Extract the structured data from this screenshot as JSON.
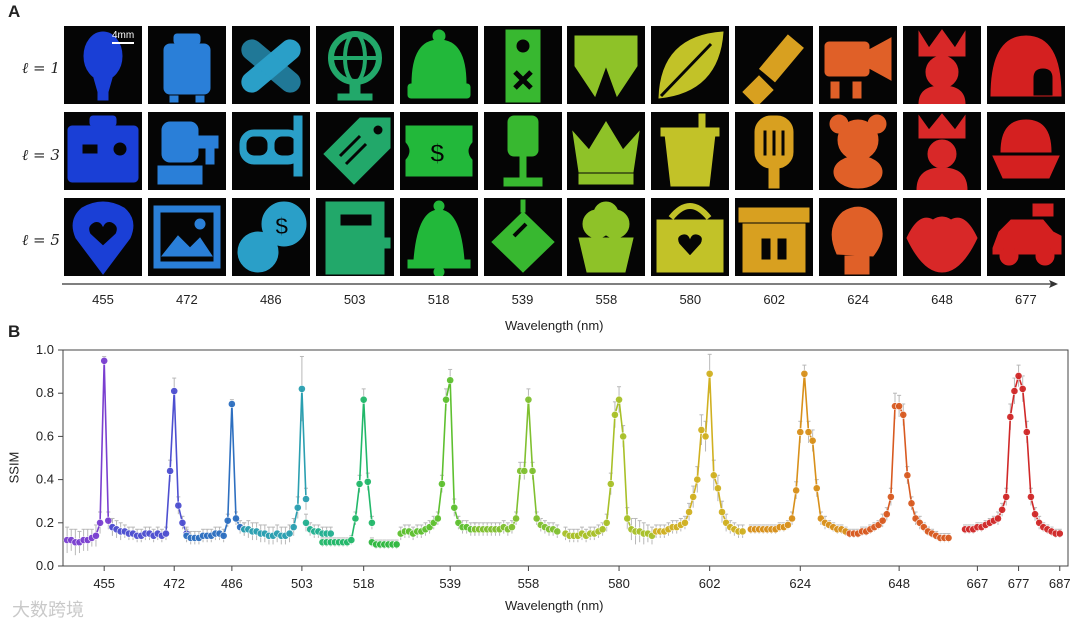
{
  "panels": {
    "a_label": "A",
    "b_label": "B"
  },
  "panel_a": {
    "row_labels": [
      "ℓ = 1",
      "ℓ = 3",
      "ℓ = 5"
    ],
    "scale_bar": "4mm",
    "wavelengths": [
      "455",
      "472",
      "486",
      "503",
      "518",
      "539",
      "558",
      "580",
      "602",
      "624",
      "648",
      "677"
    ],
    "xlabel": "Wavelength (nm)",
    "tile_colors": [
      "#1a3fd6",
      "#2a7fd8",
      "#2a9fc8",
      "#22a86a",
      "#22b83a",
      "#38b830",
      "#8ec228",
      "#c2c228",
      "#d8a020",
      "#e06028",
      "#d82828",
      "#d42020"
    ],
    "icons": [
      [
        "balloon-icon",
        "suitcase-icon",
        "bandage-icon",
        "globe-icon",
        "beanie-icon",
        "door-hanger-icon",
        "swim-shorts-icon",
        "leaf-icon",
        "flashlight-icon",
        "projector-icon",
        "princess-icon",
        "igloo-icon"
      ],
      [
        "toolbox-icon",
        "faucet-icon",
        "snorkel-mask-icon",
        "price-tag-icon",
        "ticket-icon",
        "lamp-icon",
        "crown-icon",
        "drink-cup-icon",
        "popsicle-icon",
        "teddy-bear-icon",
        "queen-icon",
        "sailboat-icon"
      ],
      [
        "heart-pin-icon",
        "picture-icon",
        "coins-icon",
        "notebook-icon",
        "bell-icon",
        "disco-ball-icon",
        "cupcake-icon",
        "basket-heart-icon",
        "gift-box-icon",
        "boxing-glove-icon",
        "lips-icon",
        "car-icon"
      ]
    ]
  },
  "chart_data": {
    "type": "line",
    "title": "",
    "xlabel": "Wavelength (nm)",
    "ylabel": "SSIM",
    "ylim": [
      0.0,
      1.0
    ],
    "yticks": [
      0.0,
      0.2,
      0.4,
      0.6,
      0.8,
      1.0
    ],
    "ytick_labels": [
      "0.0",
      "0.2",
      "0.4",
      "0.6",
      "0.8",
      "1.0"
    ],
    "xticks": [
      455,
      472,
      486,
      503,
      518,
      539,
      558,
      580,
      602,
      624,
      648,
      667,
      677,
      687
    ],
    "xtick_labels": [
      "455",
      "472",
      "486",
      "503",
      "518",
      "539",
      "558",
      "580",
      "602",
      "624",
      "648",
      "667",
      "677",
      "687"
    ],
    "xlim": [
      445,
      689
    ],
    "grid": false,
    "series": [
      {
        "color": "#7a3fd0",
        "x": [
          446,
          447,
          448,
          449,
          450,
          451,
          452,
          453,
          454,
          455,
          456,
          457
        ],
        "y": [
          0.12,
          0.12,
          0.11,
          0.11,
          0.12,
          0.12,
          0.13,
          0.14,
          0.2,
          0.95,
          0.21,
          0.18
        ],
        "err": [
          0.06,
          0.05,
          0.06,
          0.05,
          0.05,
          0.05,
          0.04,
          0.05,
          0.05,
          0.02,
          0.04,
          0.04
        ]
      },
      {
        "color": "#4d4fd0",
        "x": [
          457,
          458,
          459,
          460,
          461,
          462,
          463,
          464,
          465,
          466,
          467,
          468,
          469,
          470,
          471,
          472,
          473,
          474,
          475
        ],
        "y": [
          0.18,
          0.17,
          0.16,
          0.16,
          0.15,
          0.15,
          0.14,
          0.14,
          0.15,
          0.15,
          0.14,
          0.15,
          0.14,
          0.15,
          0.44,
          0.81,
          0.28,
          0.2,
          0.15
        ],
        "err": [
          0.04,
          0.04,
          0.04,
          0.03,
          0.03,
          0.03,
          0.03,
          0.03,
          0.03,
          0.03,
          0.03,
          0.03,
          0.03,
          0.03,
          0.05,
          0.06,
          0.04,
          0.03,
          0.03
        ]
      },
      {
        "color": "#2d6fc0",
        "x": [
          475,
          476,
          477,
          478,
          479,
          480,
          481,
          482,
          483,
          484,
          485,
          486,
          487,
          488,
          489
        ],
        "y": [
          0.14,
          0.13,
          0.13,
          0.13,
          0.14,
          0.14,
          0.14,
          0.15,
          0.15,
          0.14,
          0.21,
          0.75,
          0.22,
          0.18,
          0.17
        ],
        "err": [
          0.03,
          0.03,
          0.03,
          0.03,
          0.03,
          0.03,
          0.03,
          0.03,
          0.03,
          0.03,
          0.03,
          0.02,
          0.03,
          0.03,
          0.03
        ]
      },
      {
        "color": "#2a9fb0",
        "x": [
          489,
          490,
          491,
          492,
          493,
          494,
          495,
          496,
          497,
          498,
          499,
          500,
          501,
          502,
          503,
          504
        ],
        "y": [
          0.17,
          0.17,
          0.16,
          0.16,
          0.15,
          0.15,
          0.14,
          0.14,
          0.15,
          0.14,
          0.14,
          0.15,
          0.18,
          0.27,
          0.82,
          0.31
        ],
        "err": [
          0.03,
          0.04,
          0.04,
          0.04,
          0.04,
          0.04,
          0.04,
          0.04,
          0.04,
          0.04,
          0.04,
          0.04,
          0.04,
          0.05,
          0.15,
          0.05
        ]
      },
      {
        "color": "#22b090",
        "x": [
          504,
          505,
          506,
          507,
          508,
          509,
          510
        ],
        "y": [
          0.2,
          0.17,
          0.16,
          0.16,
          0.15,
          0.15,
          0.15
        ],
        "err": [
          0.04,
          0.03,
          0.03,
          0.03,
          0.03,
          0.03,
          0.03
        ]
      },
      {
        "color": "#22b86a",
        "x": [
          508,
          509,
          510,
          511,
          512,
          513,
          514,
          515,
          516,
          517,
          518,
          519,
          520
        ],
        "y": [
          0.11,
          0.11,
          0.11,
          0.11,
          0.11,
          0.11,
          0.11,
          0.12,
          0.22,
          0.38,
          0.77,
          0.39,
          0.2
        ],
        "err": [
          0.02,
          0.02,
          0.02,
          0.02,
          0.02,
          0.02,
          0.02,
          0.02,
          0.03,
          0.04,
          0.05,
          0.04,
          0.03
        ]
      },
      {
        "color": "#30b840",
        "x": [
          520,
          521,
          522,
          523,
          524,
          525,
          526
        ],
        "y": [
          0.11,
          0.1,
          0.1,
          0.1,
          0.1,
          0.1,
          0.1
        ],
        "err": [
          0.02,
          0.02,
          0.02,
          0.02,
          0.02,
          0.02,
          0.02
        ]
      },
      {
        "color": "#5ec030",
        "x": [
          527,
          528,
          529,
          530,
          531,
          532,
          533,
          534,
          535,
          536,
          537,
          538,
          539,
          540,
          541,
          542,
          543,
          544,
          545
        ],
        "y": [
          0.15,
          0.16,
          0.16,
          0.15,
          0.16,
          0.16,
          0.17,
          0.18,
          0.2,
          0.22,
          0.38,
          0.77,
          0.86,
          0.27,
          0.2,
          0.18,
          0.18,
          0.17,
          0.17
        ],
        "err": [
          0.03,
          0.03,
          0.03,
          0.03,
          0.03,
          0.03,
          0.03,
          0.03,
          0.03,
          0.03,
          0.04,
          0.05,
          0.05,
          0.04,
          0.03,
          0.03,
          0.03,
          0.03,
          0.03
        ]
      },
      {
        "color": "#80c030",
        "x": [
          545,
          546,
          547,
          548,
          549,
          550,
          551,
          552,
          553,
          554,
          555,
          556,
          557,
          558,
          559,
          560,
          561,
          562,
          563,
          564,
          565
        ],
        "y": [
          0.17,
          0.17,
          0.17,
          0.17,
          0.17,
          0.17,
          0.17,
          0.18,
          0.17,
          0.18,
          0.22,
          0.44,
          0.44,
          0.77,
          0.44,
          0.22,
          0.19,
          0.18,
          0.17,
          0.17,
          0.16
        ],
        "err": [
          0.03,
          0.03,
          0.03,
          0.03,
          0.03,
          0.03,
          0.03,
          0.03,
          0.03,
          0.03,
          0.03,
          0.04,
          0.04,
          0.05,
          0.04,
          0.03,
          0.03,
          0.03,
          0.03,
          0.03,
          0.03
        ]
      },
      {
        "color": "#a8c028",
        "x": [
          567,
          568,
          569,
          570,
          571,
          572,
          573,
          574,
          575,
          576,
          577,
          578,
          579,
          580,
          581,
          582,
          583,
          584,
          585,
          586,
          587,
          588
        ],
        "y": [
          0.15,
          0.14,
          0.14,
          0.14,
          0.15,
          0.14,
          0.15,
          0.15,
          0.16,
          0.17,
          0.2,
          0.38,
          0.7,
          0.77,
          0.6,
          0.22,
          0.17,
          0.16,
          0.16,
          0.15,
          0.15,
          0.14
        ],
        "err": [
          0.03,
          0.03,
          0.03,
          0.03,
          0.03,
          0.03,
          0.03,
          0.03,
          0.03,
          0.03,
          0.04,
          0.05,
          0.06,
          0.06,
          0.05,
          0.05,
          0.05,
          0.06,
          0.05,
          0.05,
          0.04,
          0.04
        ]
      },
      {
        "color": "#d0b020",
        "x": [
          589,
          590,
          591,
          592,
          593,
          594,
          595,
          596,
          597,
          598,
          599,
          600,
          601,
          602,
          603,
          604,
          605,
          606,
          607,
          608,
          609,
          610
        ],
        "y": [
          0.16,
          0.16,
          0.16,
          0.17,
          0.18,
          0.18,
          0.19,
          0.2,
          0.25,
          0.32,
          0.4,
          0.63,
          0.6,
          0.89,
          0.42,
          0.36,
          0.25,
          0.2,
          0.18,
          0.17,
          0.16,
          0.16
        ],
        "err": [
          0.03,
          0.03,
          0.03,
          0.03,
          0.03,
          0.03,
          0.03,
          0.03,
          0.04,
          0.05,
          0.06,
          0.07,
          0.07,
          0.09,
          0.07,
          0.06,
          0.05,
          0.04,
          0.03,
          0.03,
          0.03,
          0.03
        ]
      },
      {
        "color": "#d8901a",
        "x": [
          612,
          613,
          614,
          615,
          616,
          617,
          618,
          619,
          620,
          621,
          622,
          623,
          624,
          625,
          626,
          627,
          628,
          629,
          630,
          631,
          632,
          633,
          634,
          635
        ],
        "y": [
          0.17,
          0.17,
          0.17,
          0.17,
          0.17,
          0.17,
          0.17,
          0.18,
          0.18,
          0.19,
          0.22,
          0.35,
          0.62,
          0.89,
          0.62,
          0.58,
          0.36,
          0.22,
          0.2,
          0.19,
          0.18,
          0.17,
          0.17,
          0.16
        ],
        "err": [
          0.02,
          0.02,
          0.02,
          0.02,
          0.02,
          0.02,
          0.02,
          0.02,
          0.02,
          0.02,
          0.03,
          0.04,
          0.05,
          0.04,
          0.05,
          0.05,
          0.04,
          0.03,
          0.03,
          0.02,
          0.02,
          0.02,
          0.02,
          0.02
        ]
      },
      {
        "color": "#d85a20",
        "x": [
          636,
          637,
          638,
          639,
          640,
          641,
          642,
          643,
          644,
          645,
          646,
          647,
          648,
          649,
          650,
          651,
          652,
          653,
          654,
          655,
          656,
          657,
          658,
          659,
          660
        ],
        "y": [
          0.15,
          0.15,
          0.15,
          0.16,
          0.16,
          0.17,
          0.18,
          0.19,
          0.21,
          0.24,
          0.32,
          0.74,
          0.74,
          0.7,
          0.42,
          0.29,
          0.22,
          0.2,
          0.18,
          0.16,
          0.15,
          0.14,
          0.13,
          0.13,
          0.13
        ],
        "err": [
          0.02,
          0.02,
          0.02,
          0.02,
          0.02,
          0.02,
          0.02,
          0.02,
          0.03,
          0.03,
          0.04,
          0.06,
          0.05,
          0.05,
          0.04,
          0.03,
          0.03,
          0.03,
          0.02,
          0.02,
          0.02,
          0.02,
          0.02,
          0.02,
          0.02
        ]
      },
      {
        "color": "#d02828",
        "x": [
          664,
          665,
          666,
          667,
          668,
          669,
          670,
          671,
          672,
          673,
          674,
          675,
          676,
          677,
          678,
          679,
          680,
          681,
          682,
          683,
          684,
          685,
          686,
          687
        ],
        "y": [
          0.17,
          0.17,
          0.17,
          0.18,
          0.18,
          0.19,
          0.2,
          0.21,
          0.22,
          0.26,
          0.32,
          0.69,
          0.81,
          0.88,
          0.82,
          0.62,
          0.32,
          0.24,
          0.2,
          0.18,
          0.17,
          0.16,
          0.15,
          0.15
        ],
        "err": [
          0.02,
          0.02,
          0.02,
          0.02,
          0.02,
          0.02,
          0.02,
          0.02,
          0.03,
          0.03,
          0.04,
          0.06,
          0.06,
          0.05,
          0.06,
          0.05,
          0.04,
          0.03,
          0.03,
          0.02,
          0.02,
          0.02,
          0.02,
          0.02
        ]
      }
    ]
  },
  "watermark": "大数跨境"
}
